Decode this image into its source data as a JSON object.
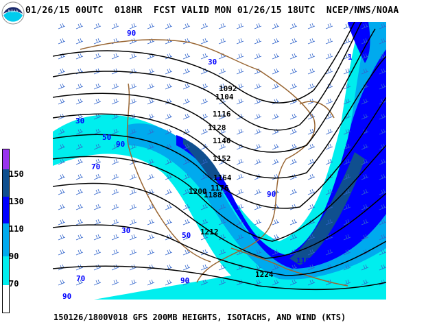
{
  "header": {
    "title": "01/26/15 00UTC  018HR  FCST VALID MON 01/26/15 18UTC  NCEP/NWS/NOAA",
    "logo_text": "NOAA"
  },
  "footer": {
    "caption": "150126/1800V018 GFS 200MB HEIGHTS, ISOTACHS, AND WIND (KTS)"
  },
  "legend": {
    "unit": "kts",
    "bins": [
      {
        "from": 150,
        "color": "#9933ee"
      },
      {
        "from": 130,
        "color": "#0f4f8f",
        "label": "150"
      },
      {
        "from": 110,
        "color": "#0000ff",
        "label": "130"
      },
      {
        "from": 90,
        "color": "#00aaee",
        "label": "110"
      },
      {
        "from": 70,
        "color": "#00eeee",
        "label": "90"
      },
      {
        "from": 0,
        "color": "#ffffff",
        "label": "70"
      }
    ]
  },
  "map": {
    "height_contours": [
      "1092",
      "1104",
      "1116",
      "1128",
      "1140",
      "1152",
      "1164",
      "1176",
      "1188",
      "1200",
      "1212",
      "1224"
    ],
    "isotach_labels": [
      "90",
      "30",
      "50",
      "90",
      "70",
      "30",
      "90",
      "30",
      "50",
      "70",
      "90",
      "110",
      "1"
    ],
    "colors": {
      "coast": "#996633",
      "isotach_line": "#0000ff",
      "barbs": "#3366cc",
      "contour": "#000000"
    }
  }
}
